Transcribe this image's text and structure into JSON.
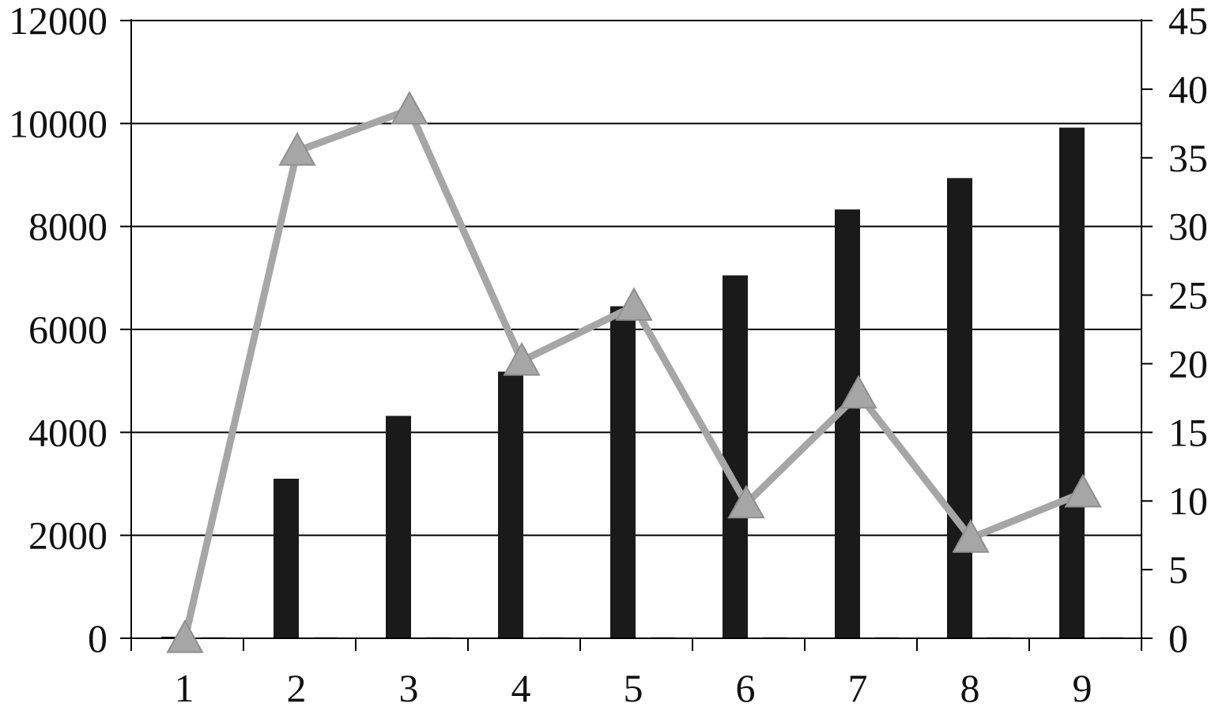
{
  "colors": {
    "bars": "#1a1a1a",
    "line": "#a6a6a6",
    "marker": "#a6a6a6",
    "grid": "#000000",
    "background": "#ffffff"
  },
  "chart_data": {
    "type": "bar",
    "title": "",
    "xlabel": "",
    "ylabel": "",
    "y2label": "",
    "grid": true,
    "legend": "none",
    "categories": [
      "1",
      "2",
      "3",
      "4",
      "5",
      "6",
      "7",
      "8",
      "9"
    ],
    "ylim": [
      0,
      12000
    ],
    "y_ticks": [
      0,
      2000,
      4000,
      6000,
      8000,
      10000,
      12000
    ],
    "y2lim": [
      0,
      45
    ],
    "y2_ticks": [
      0,
      5,
      10,
      15,
      20,
      25,
      30,
      35,
      40,
      45
    ],
    "series": [
      {
        "type": "bar",
        "axis": "left",
        "values": [
          0,
          3100,
          4320,
          5180,
          6450,
          7050,
          8330,
          8940,
          9920
        ]
      },
      {
        "type": "bar",
        "axis": "left",
        "values": [
          0,
          0,
          0,
          0,
          0,
          0,
          0,
          0,
          0
        ]
      },
      {
        "type": "line",
        "axis": "right",
        "marker": "triangle",
        "values": [
          0,
          35.5,
          38.5,
          20.2,
          24.2,
          9.8,
          17.8,
          7.3,
          10.6
        ]
      }
    ]
  }
}
